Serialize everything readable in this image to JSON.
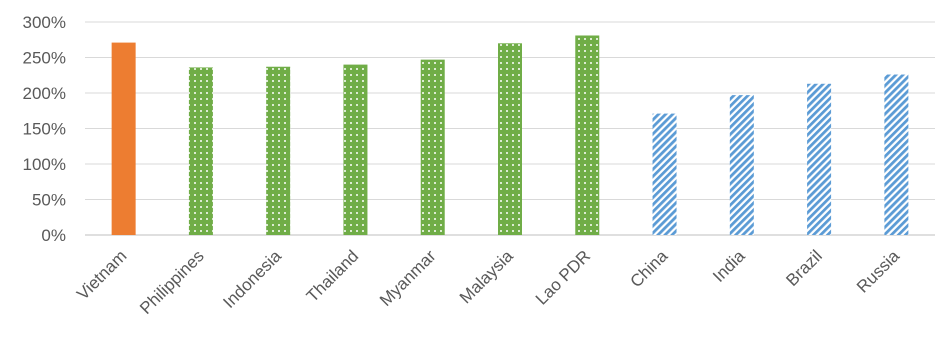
{
  "chart_data": {
    "type": "bar",
    "title": "",
    "xlabel": "",
    "ylabel": "",
    "categories": [
      "Vietnam",
      "Philippines",
      "Indonesia",
      "Thailand",
      "Myanmar",
      "Malaysia",
      "Lao PDR",
      "China",
      "India",
      "Brazil",
      "Russia"
    ],
    "values": [
      2.71,
      2.36,
      2.37,
      2.4,
      2.47,
      2.7,
      2.81,
      1.71,
      1.97,
      2.13,
      2.26
    ],
    "ylim": [
      0,
      3
    ],
    "yticks": [
      0,
      0.5,
      1.0,
      1.5,
      2.0,
      2.5,
      3.0
    ],
    "ytick_labels": [
      "0%",
      "50%",
      "100%",
      "150%",
      "200%",
      "250%",
      "300%"
    ],
    "grid": true,
    "legend": "none",
    "bar_styles": [
      "solid",
      "dotted",
      "dotted",
      "dotted",
      "dotted",
      "dotted",
      "dotted",
      "hatched",
      "hatched",
      "hatched",
      "hatched"
    ],
    "colors": {
      "solid": "#ed7d31",
      "dotted": "#70ad47",
      "hatched": "#5b9bd5"
    }
  }
}
